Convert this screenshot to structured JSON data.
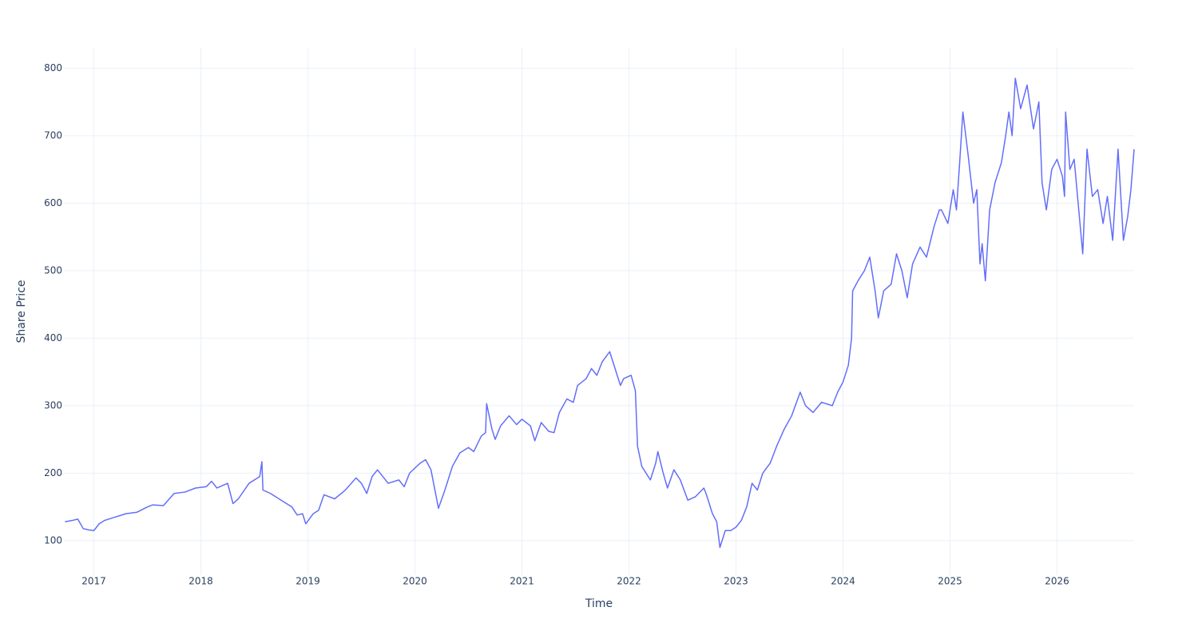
{
  "chart_data": {
    "type": "line",
    "x_label": "Time",
    "y_label": "Share Price",
    "xlim": [
      2016.72,
      2026.72
    ],
    "xticks": [
      2017,
      2018,
      2019,
      2020,
      2021,
      2022,
      2023,
      2024,
      2025,
      2026
    ],
    "ylim": [
      49,
      830
    ],
    "yticks": [
      100,
      200,
      300,
      400,
      500,
      600,
      700,
      800
    ],
    "grid": true,
    "x": [
      2016.73,
      2016.8,
      2016.85,
      2016.9,
      2016.95,
      2017.0,
      2017.05,
      2017.1,
      2017.2,
      2017.3,
      2017.4,
      2017.5,
      2017.55,
      2017.65,
      2017.75,
      2017.85,
      2017.95,
      2018.05,
      2018.1,
      2018.15,
      2018.25,
      2018.3,
      2018.35,
      2018.45,
      2018.55,
      2018.57,
      2018.58,
      2018.65,
      2018.75,
      2018.85,
      2018.9,
      2018.95,
      2018.98,
      2019.05,
      2019.1,
      2019.15,
      2019.25,
      2019.35,
      2019.45,
      2019.5,
      2019.55,
      2019.6,
      2019.65,
      2019.75,
      2019.85,
      2019.9,
      2019.95,
      2020.05,
      2020.1,
      2020.15,
      2020.22,
      2020.28,
      2020.35,
      2020.42,
      2020.5,
      2020.55,
      2020.62,
      2020.66,
      2020.67,
      2020.72,
      2020.75,
      2020.8,
      2020.88,
      2020.95,
      2021.0,
      2021.08,
      2021.12,
      2021.18,
      2021.25,
      2021.3,
      2021.35,
      2021.42,
      2021.48,
      2021.52,
      2021.6,
      2021.65,
      2021.7,
      2021.75,
      2021.82,
      2021.88,
      2021.92,
      2021.95,
      2022.02,
      2022.06,
      2022.08,
      2022.12,
      2022.2,
      2022.25,
      2022.27,
      2022.32,
      2022.36,
      2022.42,
      2022.48,
      2022.55,
      2022.62,
      2022.7,
      2022.72,
      2022.78,
      2022.82,
      2022.85,
      2022.9,
      2022.95,
      2023.0,
      2023.05,
      2023.1,
      2023.15,
      2023.2,
      2023.25,
      2023.32,
      2023.38,
      2023.45,
      2023.52,
      2023.6,
      2023.65,
      2023.72,
      2023.8,
      2023.9,
      2023.95,
      2024.0,
      2024.05,
      2024.08,
      2024.09,
      2024.14,
      2024.2,
      2024.25,
      2024.3,
      2024.33,
      2024.38,
      2024.45,
      2024.5,
      2024.55,
      2024.6,
      2024.65,
      2024.72,
      2024.78,
      2024.85,
      2024.9,
      2024.92,
      2024.98,
      2025.03,
      2025.06,
      2025.09,
      2025.12,
      2025.17,
      2025.22,
      2025.25,
      2025.28,
      2025.3,
      2025.33,
      2025.37,
      2025.42,
      2025.48,
      2025.52,
      2025.55,
      2025.58,
      2025.61,
      2025.66,
      2025.72,
      2025.78,
      2025.83,
      2025.86,
      2025.9,
      2025.95,
      2026.0,
      2026.05,
      2026.07,
      2026.08,
      2026.12,
      2026.16,
      2026.22,
      2026.24,
      2026.28,
      2026.33,
      2026.38,
      2026.43,
      2026.47,
      2026.52,
      2026.57,
      2026.62,
      2026.66,
      2026.69,
      2026.72
    ],
    "series": [
      {
        "name": "Share Price",
        "color": "#636efa",
        "values": [
          128,
          130,
          132,
          118,
          116,
          115,
          125,
          130,
          135,
          140,
          142,
          150,
          153,
          152,
          170,
          172,
          178,
          180,
          188,
          178,
          185,
          155,
          162,
          185,
          195,
          217,
          175,
          170,
          160,
          150,
          138,
          140,
          125,
          140,
          145,
          168,
          162,
          175,
          193,
          185,
          170,
          195,
          205,
          185,
          190,
          180,
          200,
          215,
          220,
          205,
          148,
          175,
          210,
          230,
          238,
          232,
          255,
          260,
          303,
          265,
          250,
          270,
          285,
          272,
          280,
          270,
          248,
          275,
          262,
          260,
          290,
          310,
          305,
          330,
          340,
          355,
          345,
          365,
          380,
          350,
          330,
          340,
          345,
          322,
          240,
          210,
          190,
          215,
          232,
          200,
          178,
          205,
          190,
          160,
          165,
          178,
          170,
          140,
          128,
          90,
          115,
          115,
          120,
          130,
          150,
          185,
          175,
          200,
          215,
          240,
          265,
          285,
          320,
          300,
          290,
          305,
          300,
          320,
          335,
          360,
          400,
          470,
          485,
          500,
          520,
          470,
          430,
          470,
          480,
          525,
          500,
          460,
          510,
          535,
          520,
          565,
          590,
          590,
          570,
          620,
          590,
          660,
          735,
          670,
          600,
          620,
          510,
          540,
          485,
          590,
          630,
          660,
          700,
          735,
          700,
          785,
          740,
          775,
          710,
          750,
          630,
          590,
          650,
          665,
          640,
          610,
          735,
          650,
          665,
          560,
          525,
          680,
          610,
          620,
          570,
          610,
          545,
          680,
          545,
          580,
          620,
          680
        ]
      }
    ]
  }
}
